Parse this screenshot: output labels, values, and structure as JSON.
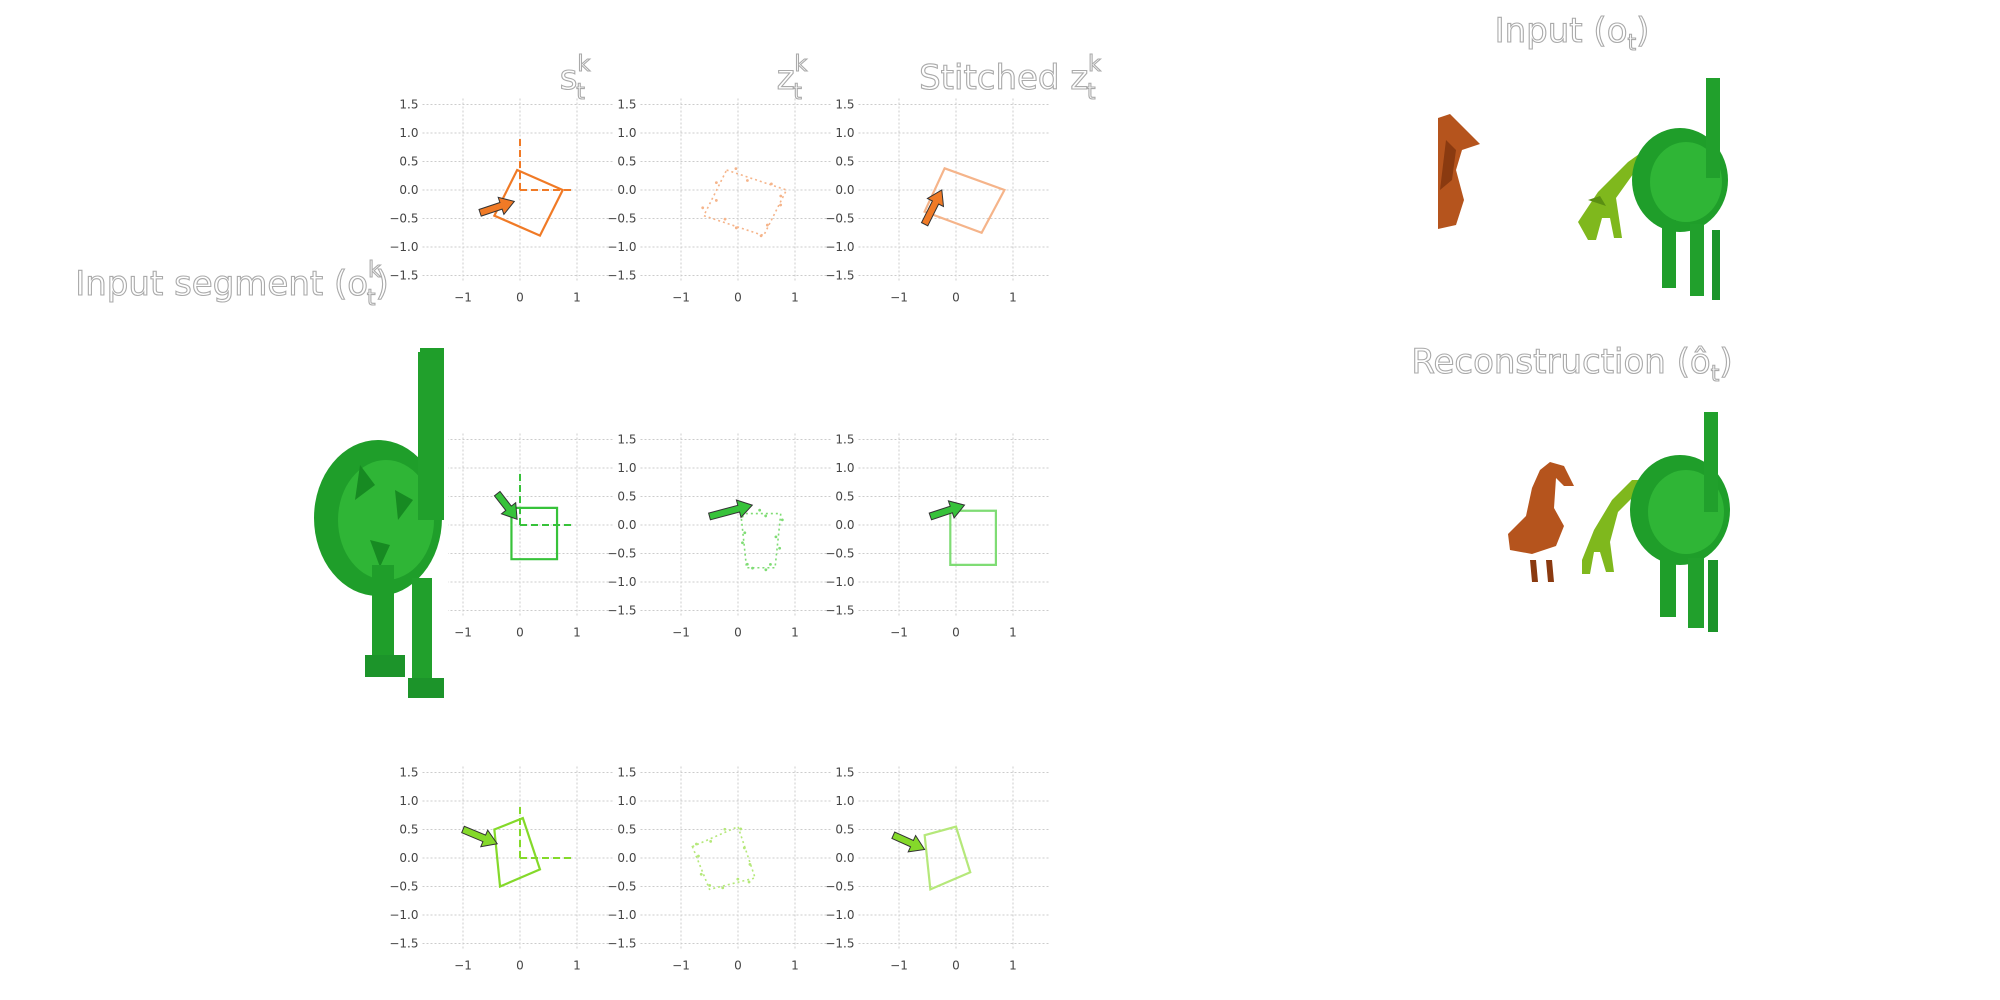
{
  "titles": {
    "col_s": "s",
    "col_z": "z",
    "col_stitched_prefix": "Stitched z",
    "sup_k": "k",
    "sub_t": "t",
    "input_segment_prefix": "Input segment (o",
    "input_prefix": "Input (o",
    "reconstruction_prefix": "Reconstruction (",
    "o_hat": "ô",
    "close_paren": ")"
  },
  "colors": {
    "orange": "#f07a26",
    "orange_light": "#f5b48a",
    "green": "#37c23a",
    "green_light": "#7fdc74",
    "lime": "#84d92a",
    "lime_light": "#b5e87a",
    "dark_green": "#1f9e2a",
    "brown": "#b5541d",
    "olive": "#7fb81d"
  },
  "chart_data": [
    {
      "type": "scatter",
      "row": "orange",
      "panel": "s_t^k",
      "title": "s_t^k",
      "xlim": [
        -1.5,
        1.5
      ],
      "ylim": [
        -1.5,
        1.5
      ],
      "xticks": [
        "−1",
        "0",
        "1"
      ],
      "yticks": [
        "1.5",
        "1.0",
        "0.5",
        "0.0",
        "−0.5",
        "−1.0",
        "−1.5"
      ],
      "grid": true,
      "color": "orange",
      "square": [
        [
          -0.05,
          0.35
        ],
        [
          0.75,
          0.0
        ],
        [
          0.35,
          -0.8
        ],
        [
          -0.45,
          -0.45
        ]
      ],
      "axes_ref": {
        "origin": [
          0.0,
          0.0
        ],
        "x_end": [
          0.95,
          0.0
        ],
        "y_end": [
          0.0,
          0.95
        ]
      },
      "arrow": {
        "from": [
          -0.7,
          -0.4
        ],
        "to": [
          -0.1,
          -0.2
        ]
      }
    },
    {
      "type": "scatter",
      "row": "orange",
      "panel": "z_t^k",
      "title": "z_t^k",
      "xlim": [
        -1.5,
        1.5
      ],
      "ylim": [
        -1.5,
        1.5
      ],
      "xticks": [
        "−1",
        "0",
        "1"
      ],
      "yticks": [
        "1.5",
        "1.0",
        "0.5",
        "0.0",
        "−0.5",
        "−1.0",
        "−1.5"
      ],
      "grid": true,
      "color": "orange_light",
      "dotted": true,
      "square": [
        [
          -0.2,
          0.35
        ],
        [
          0.85,
          0.0
        ],
        [
          0.45,
          -0.8
        ],
        [
          -0.6,
          -0.45
        ]
      ]
    },
    {
      "type": "scatter",
      "row": "orange",
      "panel": "stitched",
      "title": "Stitched z_t^k",
      "xlim": [
        -1.5,
        1.5
      ],
      "ylim": [
        -1.5,
        1.5
      ],
      "xticks": [
        "−1",
        "0",
        "1"
      ],
      "yticks": [
        "1.5",
        "1.0",
        "0.5",
        "0.0",
        "−0.5",
        "−1.0",
        "−1.5"
      ],
      "grid": true,
      "color": "orange_light",
      "square": [
        [
          -0.2,
          0.38
        ],
        [
          0.85,
          0.0
        ],
        [
          0.45,
          -0.75
        ],
        [
          -0.55,
          -0.38
        ]
      ],
      "arrow": {
        "from": [
          -0.55,
          -0.6
        ],
        "to": [
          -0.25,
          0.0
        ]
      }
    },
    {
      "type": "scatter",
      "row": "green",
      "panel": "s_t^k",
      "xlim": [
        -1.5,
        1.5
      ],
      "ylim": [
        -1.5,
        1.5
      ],
      "xticks": [
        "−1",
        "0",
        "1"
      ],
      "yticks": [
        "1.5",
        "1.0",
        "0.5",
        "0.0",
        "−0.5",
        "−1.0",
        "−1.5"
      ],
      "grid": true,
      "color": "green",
      "square": [
        [
          -0.15,
          0.3
        ],
        [
          0.65,
          0.3
        ],
        [
          0.65,
          -0.6
        ],
        [
          -0.15,
          -0.6
        ]
      ],
      "axes_ref": {
        "origin": [
          0.0,
          0.0
        ],
        "x_end": [
          0.95,
          0.0
        ],
        "y_end": [
          0.0,
          0.95
        ]
      },
      "arrow": {
        "from": [
          -0.4,
          0.55
        ],
        "to": [
          -0.05,
          0.1
        ]
      }
    },
    {
      "type": "scatter",
      "row": "green",
      "panel": "z_t^k",
      "xlim": [
        -1.5,
        1.5
      ],
      "ylim": [
        -1.5,
        1.5
      ],
      "xticks": [
        "−1",
        "0",
        "1"
      ],
      "yticks": [
        "1.5",
        "1.0",
        "0.5",
        "0.0",
        "−0.5",
        "−1.0",
        "−1.5"
      ],
      "grid": true,
      "color": "green_light",
      "dotted": true,
      "square": [
        [
          0.05,
          0.2
        ],
        [
          0.75,
          0.2
        ],
        [
          0.65,
          -0.75
        ],
        [
          0.15,
          -0.75
        ]
      ],
      "arrow": {
        "from": [
          -0.5,
          0.15
        ],
        "to": [
          0.25,
          0.35
        ]
      }
    },
    {
      "type": "scatter",
      "row": "green",
      "panel": "stitched",
      "xlim": [
        -1.5,
        1.5
      ],
      "ylim": [
        -1.5,
        1.5
      ],
      "xticks": [
        "−1",
        "0",
        "1"
      ],
      "yticks": [
        "1.5",
        "1.0",
        "0.5",
        "0.0",
        "−0.5",
        "−1.0",
        "−1.5"
      ],
      "grid": true,
      "color": "green_light",
      "square": [
        [
          -0.1,
          0.25
        ],
        [
          0.7,
          0.25
        ],
        [
          0.7,
          -0.7
        ],
        [
          -0.1,
          -0.7
        ]
      ],
      "arrow": {
        "from": [
          -0.45,
          0.15
        ],
        "to": [
          0.15,
          0.35
        ]
      }
    },
    {
      "type": "scatter",
      "row": "lime",
      "panel": "s_t^k",
      "xlim": [
        -1.5,
        1.5
      ],
      "ylim": [
        -1.5,
        1.5
      ],
      "xticks": [
        "−1",
        "0",
        "1"
      ],
      "yticks": [
        "1.5",
        "1.0",
        "0.5",
        "0.0",
        "−0.5",
        "−1.0",
        "−1.5"
      ],
      "grid": true,
      "color": "lime",
      "square": [
        [
          -0.45,
          0.5
        ],
        [
          0.05,
          0.7
        ],
        [
          0.35,
          -0.2
        ],
        [
          -0.35,
          -0.5
        ]
      ],
      "axes_ref": {
        "origin": [
          0.0,
          0.0
        ],
        "x_end": [
          0.95,
          0.0
        ],
        "y_end": [
          0.0,
          0.95
        ]
      },
      "arrow": {
        "from": [
          -1.0,
          0.5
        ],
        "to": [
          -0.4,
          0.25
        ]
      }
    },
    {
      "type": "scatter",
      "row": "lime",
      "panel": "z_t^k",
      "xlim": [
        -1.5,
        1.5
      ],
      "ylim": [
        -1.5,
        1.5
      ],
      "xticks": [
        "−1",
        "0",
        "1"
      ],
      "yticks": [
        "1.5",
        "1.0",
        "0.5",
        "0.0",
        "−0.5",
        "−1.0",
        "−1.5"
      ],
      "grid": true,
      "color": "lime_light",
      "dotted": true,
      "square": [
        [
          -0.8,
          0.2
        ],
        [
          0.0,
          0.55
        ],
        [
          0.3,
          -0.35
        ],
        [
          -0.5,
          -0.55
        ]
      ]
    },
    {
      "type": "scatter",
      "row": "lime",
      "panel": "stitched",
      "xlim": [
        -1.5,
        1.5
      ],
      "ylim": [
        -1.5,
        1.5
      ],
      "xticks": [
        "−1",
        "0",
        "1"
      ],
      "yticks": [
        "1.5",
        "1.0",
        "0.5",
        "0.0",
        "−0.5",
        "−1.0",
        "−1.5"
      ],
      "grid": true,
      "color": "lime_light",
      "square": [
        [
          -0.55,
          0.4
        ],
        [
          0.0,
          0.55
        ],
        [
          0.25,
          -0.25
        ],
        [
          -0.45,
          -0.55
        ]
      ],
      "arrow": {
        "from": [
          -1.1,
          0.4
        ],
        "to": [
          -0.55,
          0.15
        ]
      }
    }
  ]
}
